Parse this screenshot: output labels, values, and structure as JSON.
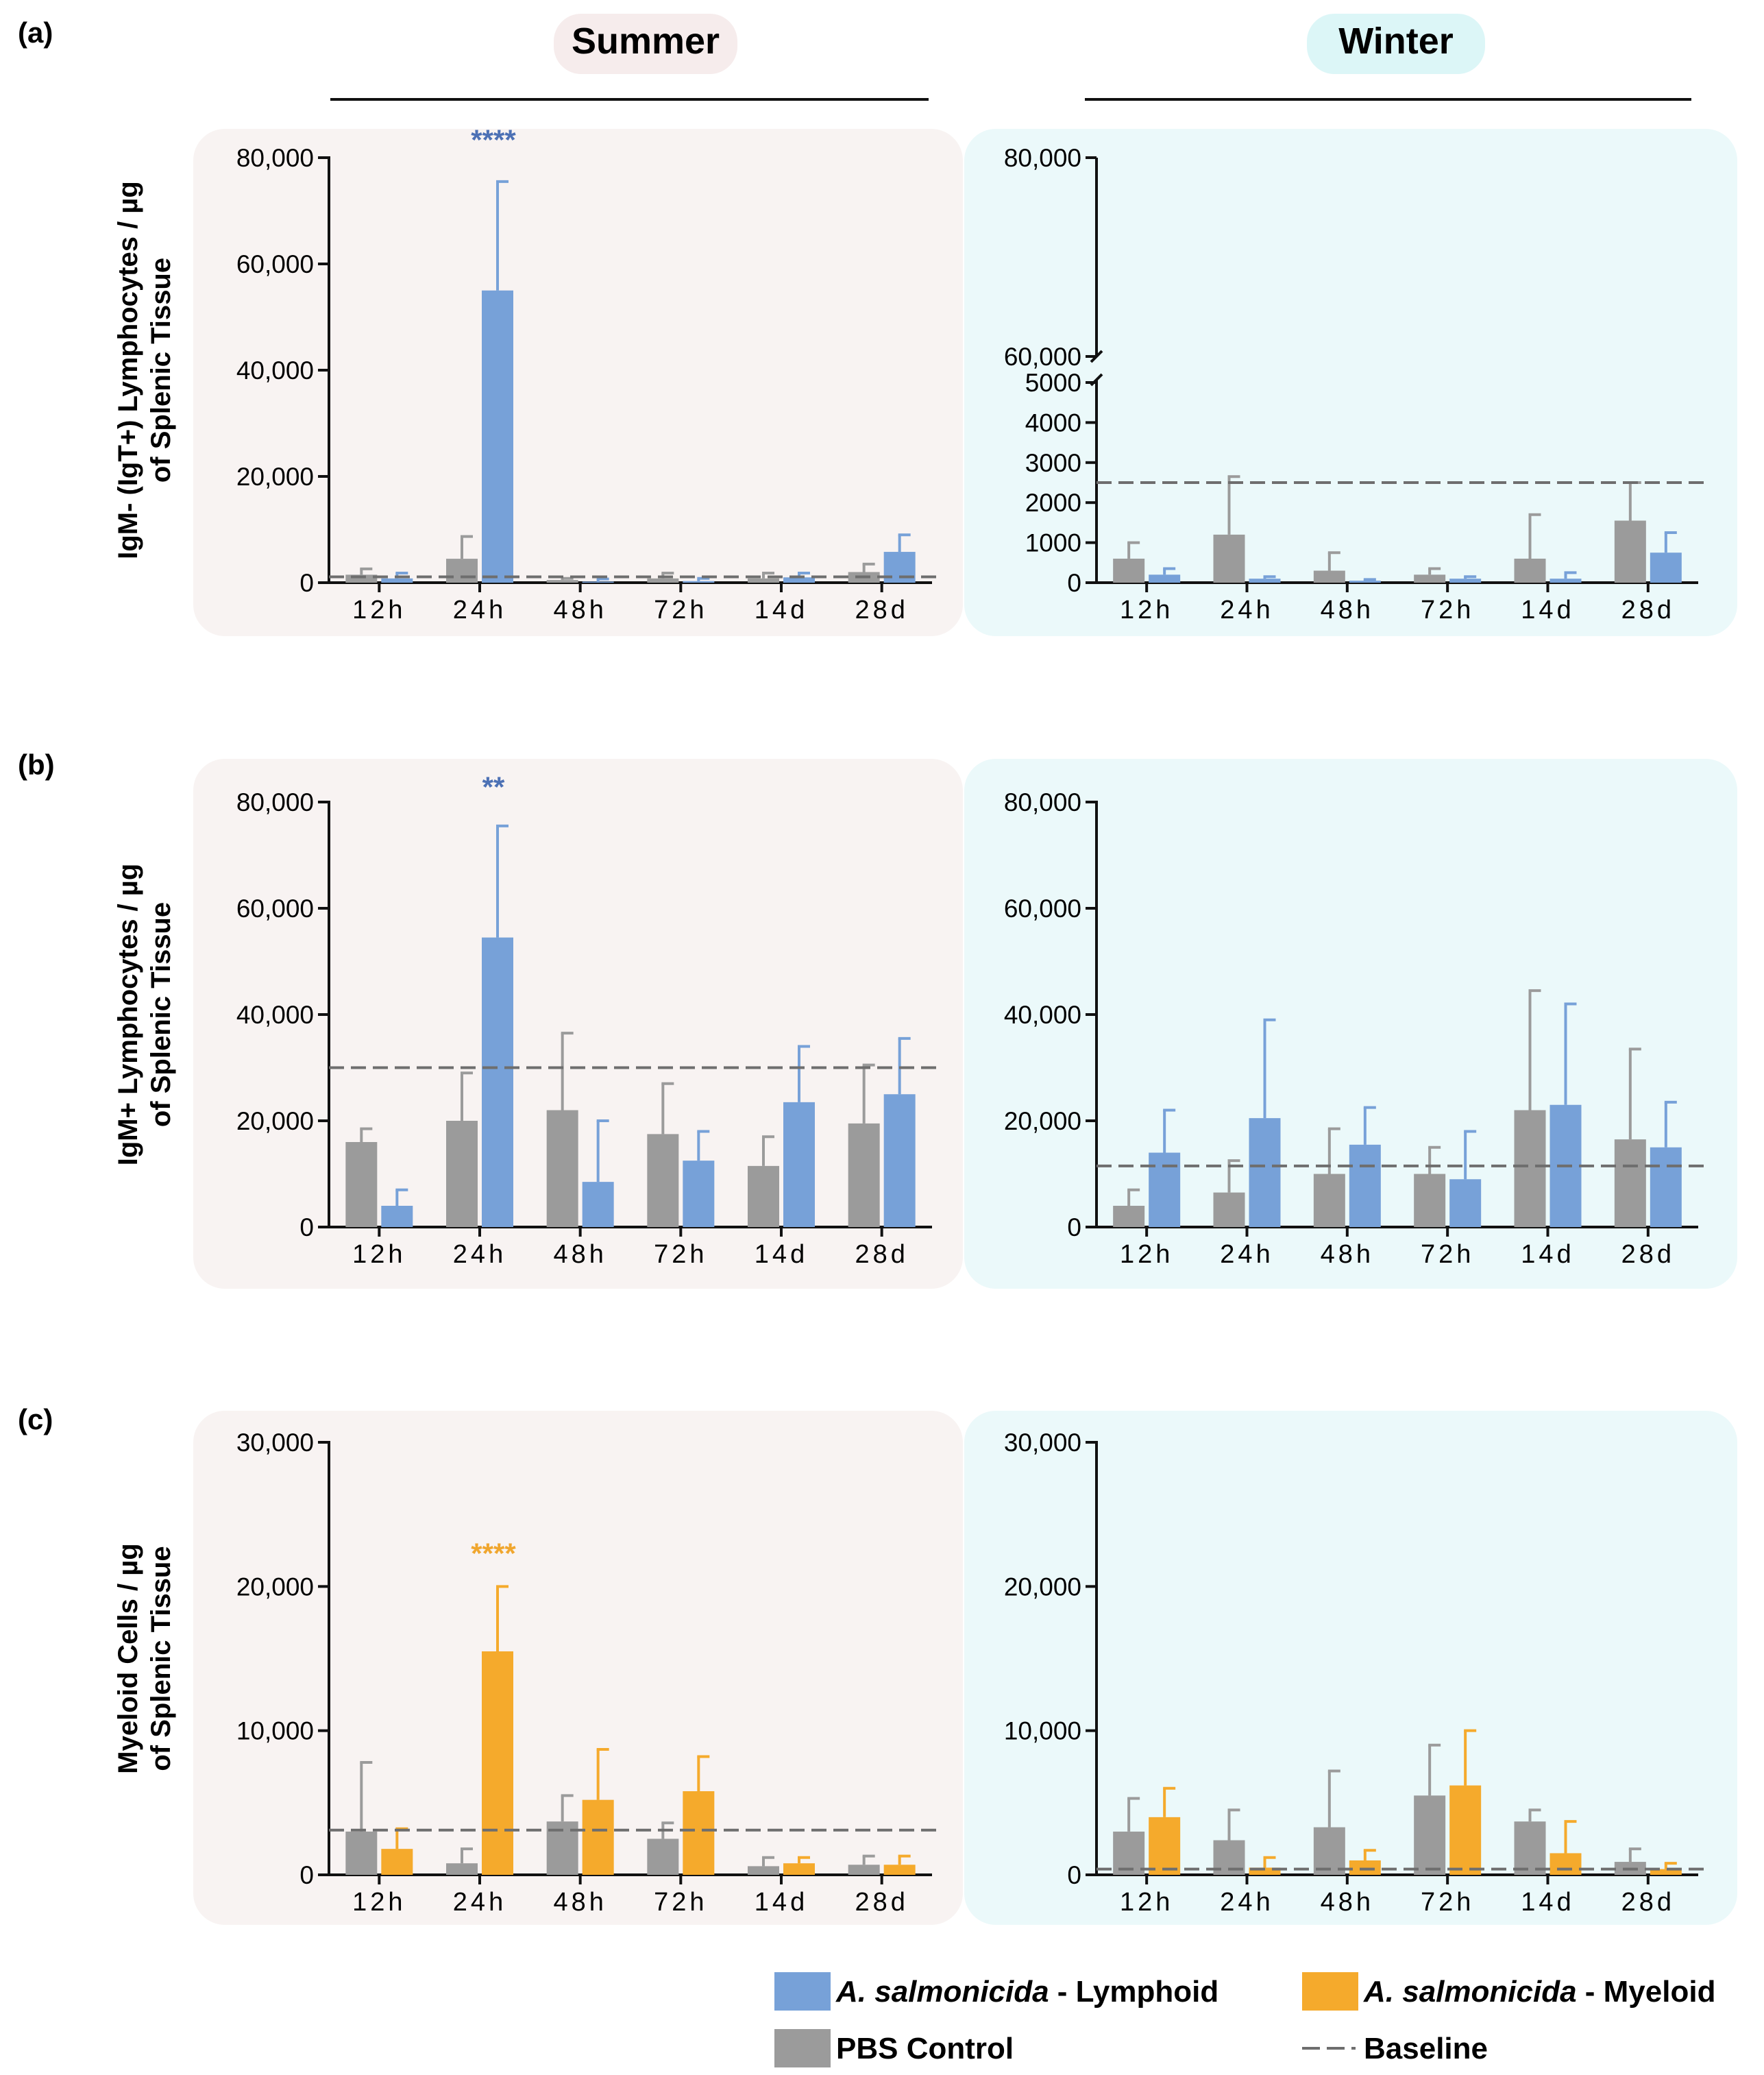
{
  "figure": {
    "panel_labels": [
      "(a)",
      "(b)",
      "(c)"
    ],
    "season_headers": [
      "Summer",
      "Winter"
    ],
    "colors": {
      "summer_bg": "#f8f3f2",
      "winter_bg": "#ebf9fa",
      "lymphoid": "#77a1d8",
      "myeloid": "#f5aa2c",
      "control": "#9b9b9b",
      "sig_lymphoid": "#4d71b5",
      "sig_myeloid": "#f0a62e",
      "summer_pill": "#f6ecec",
      "winter_pill": "#dcf6f7"
    }
  },
  "legend": {
    "items": [
      {
        "swatch": "lymphoid",
        "italic": "A. salmonicida",
        "text": " - Lymphoid"
      },
      {
        "swatch": "myeloid",
        "italic": "A. salmonicida",
        "text": " - Myeloid"
      },
      {
        "swatch": "control",
        "italic": "",
        "text": "PBS Control"
      },
      {
        "swatch": "dash",
        "italic": "",
        "text": "Baseline"
      }
    ]
  },
  "chart_data": [
    {
      "id": "a-summer",
      "type": "bar",
      "row": 0,
      "season": "Summer",
      "ylabel": [
        "IgM- (IgT+) Lymphocytes / µg",
        "of Splenic Tissue"
      ],
      "categories": [
        "12h",
        "24h",
        "48h",
        "72h",
        "14d",
        "28d"
      ],
      "ylim": [
        0,
        80000
      ],
      "ticks": [
        "0",
        "20,000",
        "40,000",
        "60,000",
        "80,000"
      ],
      "tick_values": [
        0,
        20000,
        40000,
        60000,
        80000
      ],
      "baseline": 1100,
      "series": [
        {
          "name": "PBS Control",
          "color": "control",
          "values": [
            1500,
            4500,
            500,
            800,
            800,
            2000
          ],
          "errors": [
            2600,
            8700,
            800,
            1800,
            1800,
            3500
          ]
        },
        {
          "name": "A. salmonicida - Lymphoid",
          "color": "lymphoid",
          "values": [
            800,
            55000,
            200,
            300,
            1000,
            5800
          ],
          "errors": [
            1800,
            75500,
            700,
            800,
            1800,
            9000
          ]
        }
      ],
      "annotations": [
        {
          "text": "****",
          "category": 1,
          "series": 1,
          "y": 81500,
          "color": "sig_lymphoid"
        }
      ]
    },
    {
      "id": "a-winter",
      "type": "bar",
      "row": 0,
      "season": "Winter",
      "broken_axis": true,
      "ylabel": null,
      "categories": [
        "12h",
        "24h",
        "48h",
        "72h",
        "14d",
        "28d"
      ],
      "ylim": [
        0,
        5000
      ],
      "upper_ylim": [
        60000,
        80000
      ],
      "ticks": [
        "0",
        "1000",
        "2000",
        "3000",
        "4000",
        "5000"
      ],
      "tick_values": [
        0,
        1000,
        2000,
        3000,
        4000,
        5000
      ],
      "upper_ticks": [
        "60,000",
        "80,000"
      ],
      "upper_tick_values": [
        60000,
        80000
      ],
      "baseline": 2500,
      "series": [
        {
          "name": "PBS Control",
          "color": "control",
          "values": [
            600,
            1200,
            300,
            200,
            600,
            1550
          ],
          "errors": [
            1000,
            2650,
            750,
            350,
            1700,
            2500
          ]
        },
        {
          "name": "A. salmonicida - Lymphoid",
          "color": "lymphoid",
          "values": [
            200,
            100,
            50,
            100,
            100,
            750
          ],
          "errors": [
            350,
            150,
            80,
            150,
            250,
            1250
          ]
        }
      ],
      "annotations": []
    },
    {
      "id": "b-summer",
      "type": "bar",
      "row": 1,
      "season": "Summer",
      "ylabel": [
        "IgM+ Lymphocytes / µg",
        "of Splenic Tissue"
      ],
      "categories": [
        "12h",
        "24h",
        "48h",
        "72h",
        "14d",
        "28d"
      ],
      "ylim": [
        0,
        80000
      ],
      "ticks": [
        "0",
        "20,000",
        "40,000",
        "60,000",
        "80,000"
      ],
      "tick_values": [
        0,
        20000,
        40000,
        60000,
        80000
      ],
      "baseline": 30000,
      "series": [
        {
          "name": "PBS Control",
          "color": "control",
          "values": [
            16000,
            20000,
            22000,
            17500,
            11500,
            19500
          ],
          "errors": [
            18500,
            29000,
            36500,
            27000,
            17000,
            30500
          ]
        },
        {
          "name": "A. salmonicida - Lymphoid",
          "color": "lymphoid",
          "values": [
            4000,
            54500,
            8500,
            12500,
            23500,
            25000
          ],
          "errors": [
            7000,
            75500,
            20000,
            18000,
            34000,
            35500
          ]
        }
      ],
      "annotations": [
        {
          "text": "**",
          "category": 1,
          "series": 1,
          "y": 81000,
          "color": "sig_lymphoid"
        }
      ]
    },
    {
      "id": "b-winter",
      "type": "bar",
      "row": 1,
      "season": "Winter",
      "ylabel": null,
      "categories": [
        "12h",
        "24h",
        "48h",
        "72h",
        "14d",
        "28d"
      ],
      "ylim": [
        0,
        80000
      ],
      "ticks": [
        "0",
        "20,000",
        "40,000",
        "60,000",
        "80,000"
      ],
      "tick_values": [
        0,
        20000,
        40000,
        60000,
        80000
      ],
      "baseline": 11500,
      "series": [
        {
          "name": "PBS Control",
          "color": "control",
          "values": [
            4000,
            6500,
            10000,
            10000,
            22000,
            16500
          ],
          "errors": [
            7000,
            12500,
            18500,
            15000,
            44500,
            33500
          ]
        },
        {
          "name": "A. salmonicida - Lymphoid",
          "color": "lymphoid",
          "values": [
            14000,
            20500,
            15500,
            9000,
            23000,
            15000
          ],
          "errors": [
            22000,
            39000,
            22500,
            18000,
            42000,
            23500
          ]
        }
      ],
      "annotations": []
    },
    {
      "id": "c-summer",
      "type": "bar",
      "row": 2,
      "season": "Summer",
      "ylabel": [
        "Myeloid Cells / µg",
        "of Splenic Tissue"
      ],
      "categories": [
        "12h",
        "24h",
        "48h",
        "72h",
        "14d",
        "28d"
      ],
      "ylim": [
        0,
        30000
      ],
      "ticks": [
        "0",
        "10,000",
        "20,000",
        "30,000"
      ],
      "tick_values": [
        0,
        10000,
        20000,
        30000
      ],
      "baseline": 3100,
      "series": [
        {
          "name": "PBS Control",
          "color": "control",
          "values": [
            3000,
            800,
            3700,
            2500,
            600,
            700
          ],
          "errors": [
            7800,
            1800,
            5500,
            3600,
            1200,
            1300
          ]
        },
        {
          "name": "A. salmonicida - Myeloid",
          "color": "myeloid",
          "values": [
            1800,
            15500,
            5200,
            5800,
            800,
            700
          ],
          "errors": [
            3200,
            20000,
            8700,
            8200,
            1200,
            1300
          ]
        }
      ],
      "annotations": [
        {
          "text": "****",
          "category": 1,
          "series": 1,
          "y": 21600,
          "color": "sig_myeloid"
        }
      ]
    },
    {
      "id": "c-winter",
      "type": "bar",
      "row": 2,
      "season": "Winter",
      "ylabel": null,
      "categories": [
        "12h",
        "24h",
        "48h",
        "72h",
        "14d",
        "28d"
      ],
      "ylim": [
        0,
        30000
      ],
      "ticks": [
        "0",
        "10,000",
        "20,000",
        "30,000"
      ],
      "tick_values": [
        0,
        10000,
        20000,
        30000
      ],
      "baseline": 400,
      "series": [
        {
          "name": "PBS Control",
          "color": "control",
          "values": [
            3000,
            2400,
            3300,
            5500,
            3700,
            900
          ],
          "errors": [
            5300,
            4500,
            7200,
            9000,
            4500,
            1800
          ]
        },
        {
          "name": "A. salmonicida - Myeloid",
          "color": "myeloid",
          "values": [
            4000,
            500,
            1000,
            6200,
            1500,
            400
          ],
          "errors": [
            6000,
            1200,
            1700,
            10000,
            3700,
            800
          ]
        }
      ],
      "annotations": []
    }
  ]
}
